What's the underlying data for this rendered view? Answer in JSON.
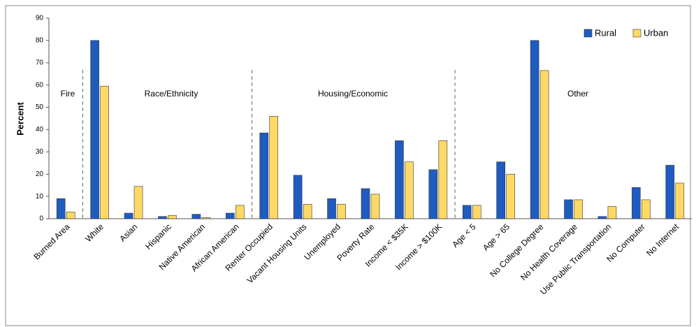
{
  "chart_data": {
    "type": "bar",
    "y_label": "Percent",
    "annotations": [
      "Fire",
      "Race/Ethnicity",
      "Housing/Economic",
      "Other"
    ],
    "categories": [
      "Burned Area",
      "White",
      "Asian",
      "Hispanic",
      "Native American",
      "African American",
      "Renter Occupied",
      "Vacant Housing Units",
      "Unemployed",
      "Poverty Rate",
      "Income < $35K",
      "Income > $100K",
      "Age < 5",
      "Age > 65",
      "No College Degree",
      "No Health Coverage",
      "Use Public Transportation",
      "No Computer",
      "No Internet"
    ],
    "series": [
      {
        "name": "Rural",
        "color": "#1f5cc0",
        "values": [
          9,
          80,
          2.5,
          1,
          2,
          2.5,
          38.5,
          19.5,
          9,
          13.5,
          35,
          22,
          6,
          25.5,
          80,
          8.5,
          1,
          14,
          24
        ]
      },
      {
        "name": "Urban",
        "color": "#ffd966",
        "values": [
          3,
          59.5,
          14.5,
          1.5,
          0.5,
          6,
          46,
          6.5,
          6.5,
          11,
          25.5,
          35,
          6,
          20,
          66.5,
          8.5,
          5.5,
          8.5,
          16
        ]
      }
    ],
    "ylim": [
      0,
      90
    ],
    "yticks": [
      0,
      10,
      20,
      30,
      40,
      50,
      60,
      70,
      80,
      90
    ],
    "legend": "top-right"
  }
}
